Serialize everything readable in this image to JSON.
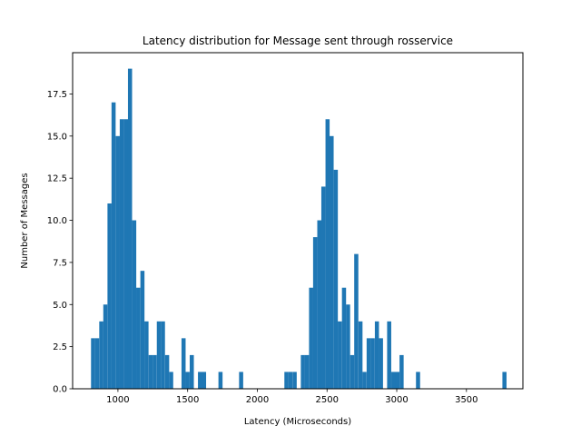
{
  "chart_data": {
    "type": "bar",
    "title": "Latency distribution for Message sent through rosservice",
    "xlabel": "Latency (Microseconds)",
    "ylabel": "Number of Messages",
    "xlim": [
      675,
      3905
    ],
    "ylim": [
      0,
      19.95
    ],
    "grid": false,
    "bar_color": "#1f77b4",
    "bin_width": 29.5,
    "xticks": [
      1000,
      1500,
      2000,
      2500,
      3000,
      3500
    ],
    "xtick_labels": [
      "1000",
      "1500",
      "2000",
      "2500",
      "3000",
      "3500"
    ],
    "yticks": [
      0,
      2.5,
      5,
      7.5,
      10,
      12.5,
      15,
      17.5
    ],
    "ytick_labels": [
      "0.0",
      "2.5",
      "5.0",
      "7.5",
      "10.0",
      "12.5",
      "15.0",
      "17.5"
    ],
    "bin_starts": [
      807,
      836,
      866,
      895,
      925,
      954,
      984,
      1013,
      1043,
      1072,
      1102,
      1131,
      1161,
      1190,
      1220,
      1249,
      1279,
      1308,
      1338,
      1367,
      1456,
      1485,
      1515,
      1574,
      1603,
      1721,
      1869,
      2194,
      2223,
      2253,
      2312,
      2341,
      2371,
      2400,
      2430,
      2459,
      2489,
      2518,
      2548,
      2577,
      2607,
      2636,
      2666,
      2695,
      2725,
      2754,
      2784,
      2813,
      2843,
      2872,
      2931,
      2961,
      2990,
      3020,
      3138,
      3758
    ],
    "values": [
      3,
      3,
      4,
      5,
      11,
      17,
      15,
      16,
      16,
      19,
      10,
      6,
      7,
      4,
      2,
      2,
      4,
      4,
      2,
      1,
      3,
      1,
      2,
      1,
      1,
      1,
      1,
      1,
      1,
      1,
      2,
      2,
      6,
      9,
      10,
      12,
      16,
      15,
      13,
      4,
      6,
      5,
      2,
      8,
      4,
      1,
      3,
      3,
      4,
      3,
      4,
      1,
      1,
      2,
      1,
      1
    ]
  }
}
